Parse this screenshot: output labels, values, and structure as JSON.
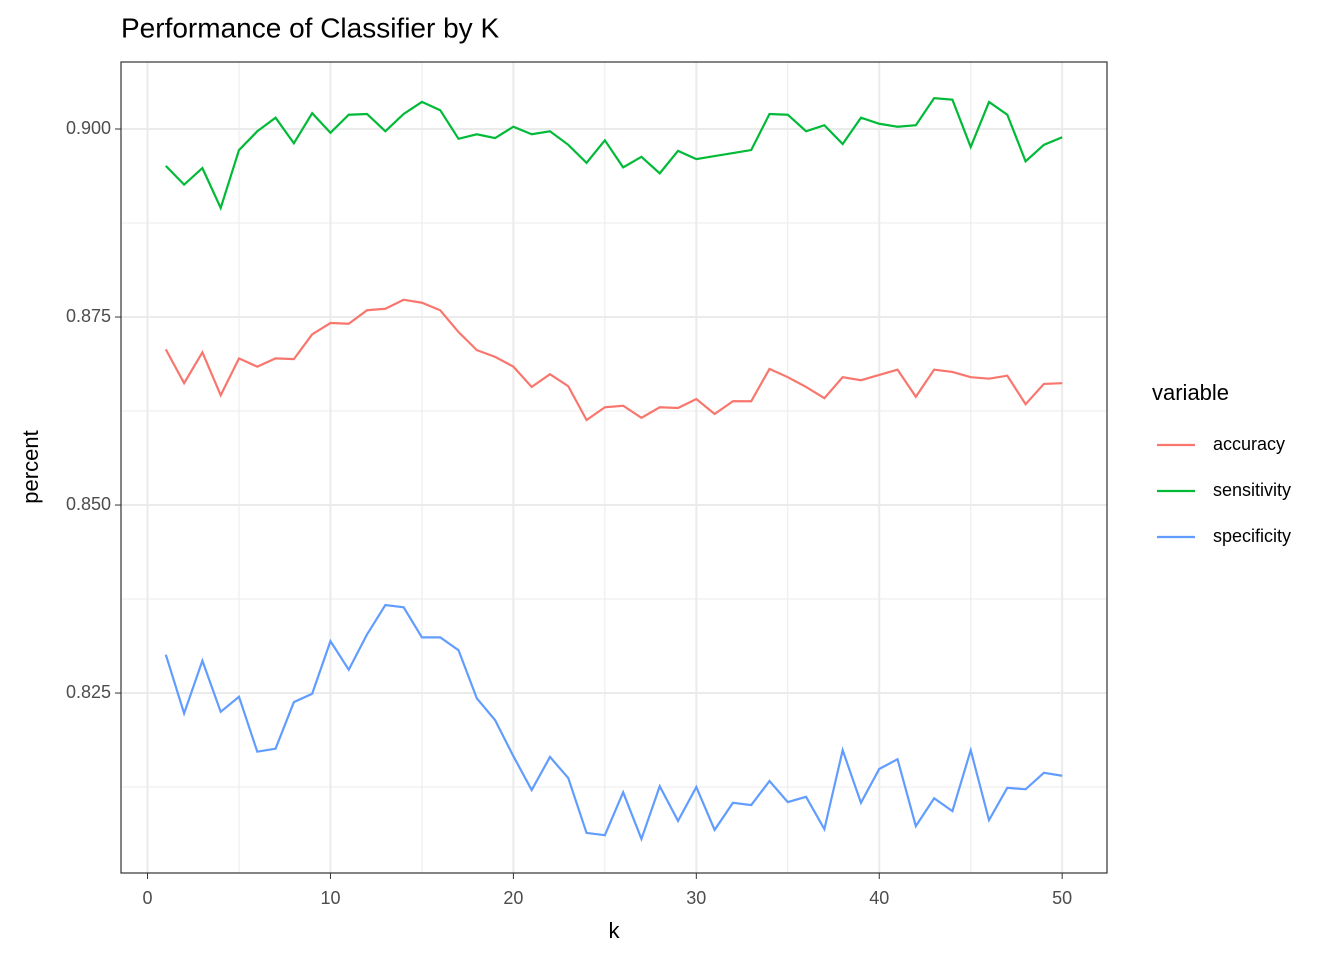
{
  "chart_data": {
    "type": "line",
    "title": "Performance of Classifier by K",
    "x_label": "k",
    "y_label": "percent",
    "legend_title": "variable",
    "legend_position": "right",
    "x": [
      1,
      2,
      3,
      4,
      5,
      6,
      7,
      8,
      9,
      10,
      11,
      12,
      13,
      14,
      15,
      16,
      17,
      18,
      19,
      20,
      21,
      22,
      23,
      24,
      25,
      26,
      27,
      28,
      29,
      30,
      31,
      32,
      33,
      34,
      35,
      36,
      37,
      38,
      39,
      40,
      41,
      42,
      43,
      44,
      45,
      46,
      47,
      48,
      49,
      50
    ],
    "series": [
      {
        "name": "accuracy",
        "color": "#F8766D",
        "values": [
          0.8707,
          0.8662,
          0.8703,
          0.8646,
          0.8695,
          0.8684,
          0.8695,
          0.8694,
          0.8727,
          0.8742,
          0.8741,
          0.8759,
          0.8761,
          0.8773,
          0.8769,
          0.8759,
          0.873,
          0.8706,
          0.8697,
          0.8684,
          0.8657,
          0.8674,
          0.8658,
          0.8613,
          0.863,
          0.8632,
          0.8616,
          0.863,
          0.8629,
          0.8641,
          0.8621,
          0.8638,
          0.8638,
          0.8681,
          0.867,
          0.8657,
          0.8642,
          0.867,
          0.8666,
          0.8673,
          0.868,
          0.8644,
          0.868,
          0.8677,
          0.867,
          0.8668,
          0.8672,
          0.8634,
          0.8661,
          0.8662
        ]
      },
      {
        "name": "sensitivity",
        "color": "#00BA38",
        "values": [
          0.8951,
          0.8926,
          0.8948,
          0.8895,
          0.8972,
          0.8997,
          0.9015,
          0.8981,
          0.9021,
          0.8995,
          0.9019,
          0.902,
          0.8997,
          0.902,
          0.9036,
          0.9025,
          0.8987,
          0.8993,
          0.8988,
          0.9003,
          0.8993,
          0.8997,
          0.8979,
          0.8955,
          0.8985,
          0.8949,
          0.8963,
          0.8941,
          0.8971,
          0.896,
          0.8964,
          0.8968,
          0.8972,
          0.902,
          0.9019,
          0.8997,
          0.9005,
          0.898,
          0.9015,
          0.9007,
          0.9003,
          0.9005,
          0.9041,
          0.9039,
          0.8976,
          0.9036,
          0.9019,
          0.8957,
          0.8979,
          0.8989
        ]
      },
      {
        "name": "specificity",
        "color": "#619CFF",
        "values": [
          0.8301,
          0.8223,
          0.8293,
          0.8225,
          0.8245,
          0.8172,
          0.8176,
          0.8238,
          0.8249,
          0.8319,
          0.8281,
          0.8328,
          0.8367,
          0.8364,
          0.8324,
          0.8324,
          0.8307,
          0.8243,
          0.8214,
          0.8166,
          0.8121,
          0.8165,
          0.8137,
          0.8064,
          0.8061,
          0.8118,
          0.8056,
          0.8126,
          0.808,
          0.8125,
          0.8068,
          0.8104,
          0.8101,
          0.8133,
          0.8105,
          0.8112,
          0.8069,
          0.8174,
          0.8104,
          0.8149,
          0.8162,
          0.8073,
          0.811,
          0.8093,
          0.8174,
          0.8081,
          0.8124,
          0.8122,
          0.8144,
          0.814
        ]
      }
    ],
    "xlim": [
      -1.45,
      52.45
    ],
    "xticks": [
      0,
      10,
      20,
      30,
      40,
      50
    ],
    "xminorticks": [
      5,
      15,
      25,
      35,
      45
    ],
    "ylim": [
      0.80107,
      0.90891
    ],
    "yticks": [
      0.825,
      {
        "value": 0.85,
        "label": "0.850"
      },
      0.875,
      {
        "value": 0.9,
        "label": "0.900"
      }
    ],
    "yminorticks": [
      0.8125,
      0.8375,
      0.8625,
      0.8875
    ],
    "grid": true
  }
}
